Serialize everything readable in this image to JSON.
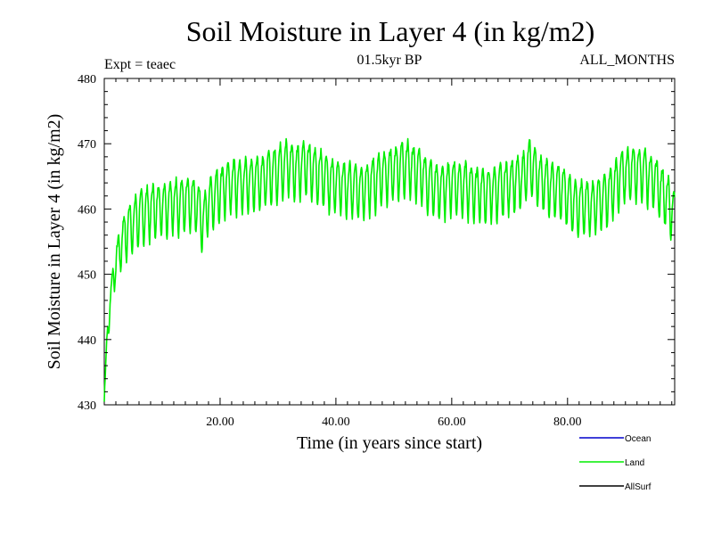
{
  "chart_data": {
    "type": "line",
    "title": "Soil Moisture in Layer 4 (in kg/m2)",
    "subtitle_left": "Expt = teaec",
    "subtitle_center": "01.5kyr BP",
    "subtitle_right": "ALL_MONTHS",
    "xlabel": "Time (in years since start)",
    "ylabel": "Soil Moisture in Layer 4 (in kg/m2)",
    "xlim": [
      0,
      98.5
    ],
    "ylim": [
      430,
      480
    ],
    "x_ticks": [
      20,
      40,
      60,
      80
    ],
    "x_tick_labels": [
      "20.00",
      "40.00",
      "60.00",
      "80.00"
    ],
    "y_ticks": [
      430,
      440,
      450,
      460,
      470,
      480
    ],
    "y_tick_labels": [
      "430",
      "440",
      "450",
      "460",
      "470",
      "480"
    ],
    "grid": false,
    "legend_position": "bottom-right",
    "series": [
      {
        "name": "Ocean",
        "color": "#0000cc",
        "x": [],
        "y": []
      },
      {
        "name": "Land",
        "color": "#00ee00",
        "x": [
          0,
          0.5,
          1,
          1.5,
          2,
          3,
          4,
          5,
          6,
          8,
          10,
          12,
          14,
          16,
          17,
          18,
          20,
          22,
          24,
          26,
          28,
          30,
          31.5,
          33,
          34.5,
          36,
          38,
          40,
          42,
          44,
          46,
          48,
          50,
          52,
          54,
          56,
          58,
          60,
          62,
          64,
          66,
          68,
          70,
          72,
          73.5,
          75,
          77,
          79,
          81,
          83,
          85,
          87,
          89,
          91,
          93,
          95,
          97,
          98.5
        ],
        "y": [
          431,
          440,
          446,
          449,
          452,
          455,
          457,
          458,
          459,
          460,
          460.5,
          461,
          461,
          461,
          458,
          461,
          463,
          464,
          464,
          464.5,
          465,
          466,
          467,
          466,
          467,
          466,
          465,
          464,
          463.5,
          463,
          464,
          465,
          466,
          467,
          466,
          464,
          463,
          464,
          463.5,
          463,
          462.5,
          463,
          464,
          464.5,
          467,
          465,
          463.5,
          463,
          461,
          460.5,
          461,
          462,
          465,
          466,
          466,
          464.5,
          462,
          459
        ],
        "amplitude": 4
      },
      {
        "name": "AllSurf",
        "color": "#000000",
        "x": [],
        "y": []
      }
    ]
  }
}
